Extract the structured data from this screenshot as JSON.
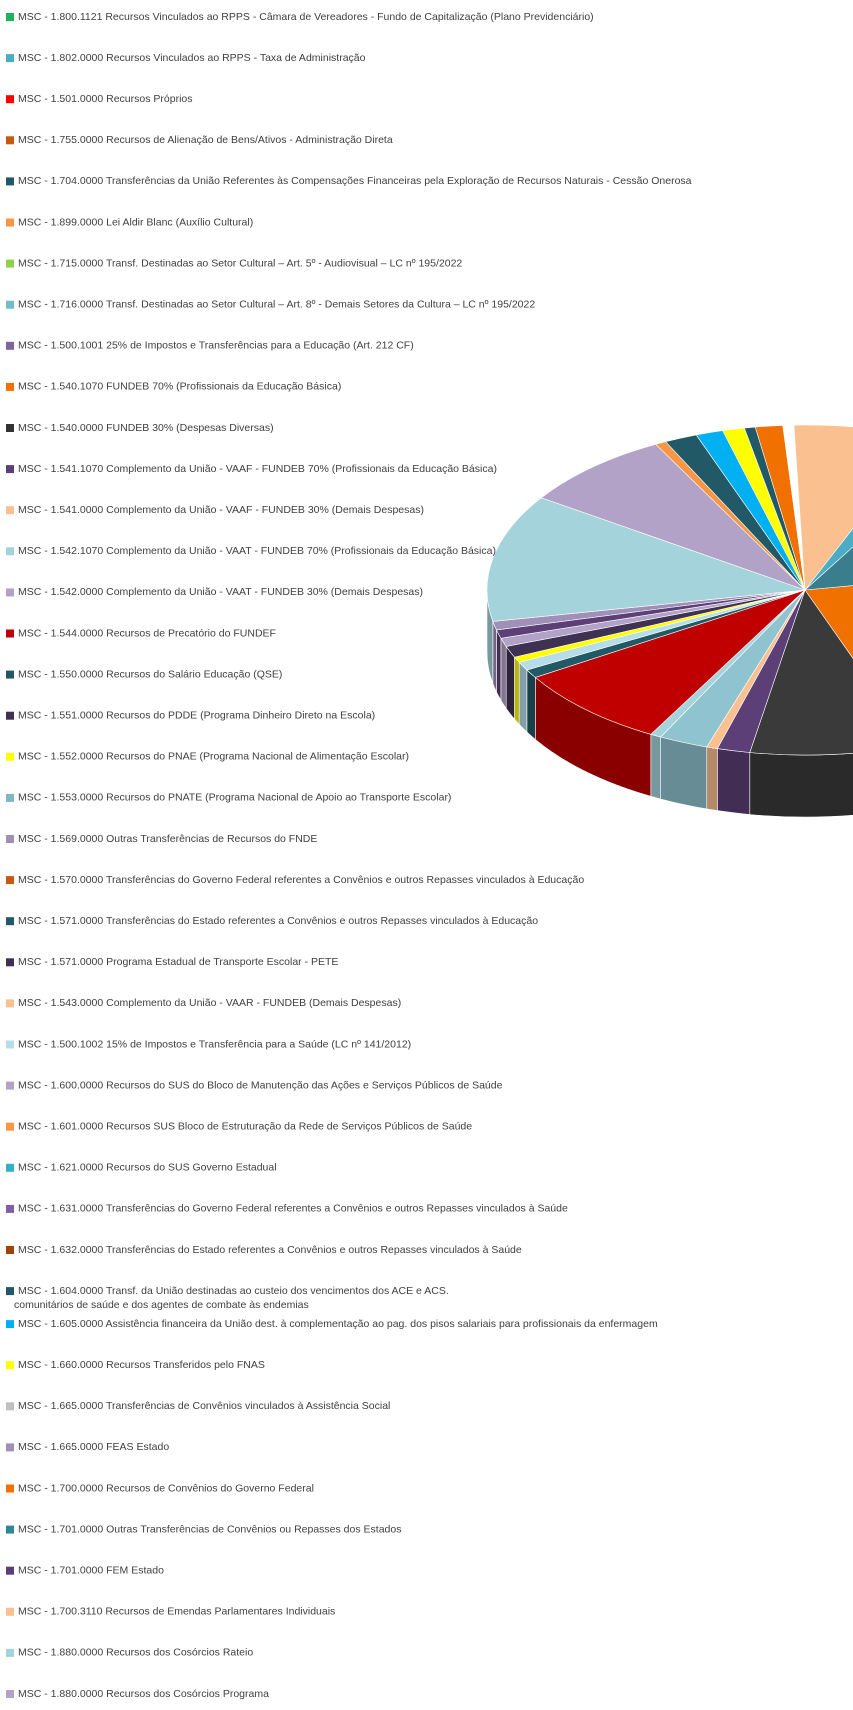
{
  "legend": {
    "items": [
      {
        "label": "MSC - 1.800.1121 Recursos Vinculados ao RPPS - Câmara de Vereadores - Fundo de Capitalização (Plano Previdenciário)",
        "color": "#1fb25a"
      },
      {
        "label": "MSC - 1.802.0000 Recursos Vinculados ao RPPS - Taxa de Administração",
        "color": "#4bacc6"
      },
      {
        "label": "MSC - 1.501.0000 Recursos Próprios",
        "color": "#ff0000"
      },
      {
        "label": "MSC - 1.755.0000 Recursos de Alienação de Bens/Ativos - Administração Direta",
        "color": "#c55a11"
      },
      {
        "label": "MSC - 1.704.0000 Transferências da União Referentes às Compensações Financeiras pela Exploração de Recursos Naturais - Cessão Onerosa",
        "color": "#215967"
      },
      {
        "label": "MSC - 1.899.0000 Lei Aldir Blanc (Auxílio Cultural)",
        "color": "#f79646"
      },
      {
        "label": "MSC - 1.715.0000 Transf. Destinadas ao Setor Cultural – Art. 5º - Audiovisual – LC nº 195/2022",
        "color": "#92d050"
      },
      {
        "label": "MSC - 1.716.0000 Transf. Destinadas ao Setor Cultural – Art. 8º - Demais Setores da Cultura – LC nº 195/2022",
        "color": "#6fbfc8"
      },
      {
        "label": "MSC - 1.500.1001 25% de Impostos e Transferências para a Educação (Art. 212 CF)",
        "color": "#8064a2"
      },
      {
        "label": "MSC - 1.540.1070 FUNDEB 70% (Profissionais da Educação Básica)",
        "color": "#f07000"
      },
      {
        "label": "MSC - 1.540.0000 FUNDEB 30% (Despesas Diversas)",
        "color": "#333333"
      },
      {
        "label": "MSC - 1.541.1070 Complemento da União - VAAF - FUNDEB 70% (Profissionais da Educação Básica)",
        "color": "#5b3f76"
      },
      {
        "label": "MSC - 1.541.0000 Complemento da União - VAAF - FUNDEB 30% (Demais Despesas)",
        "color": "#fac090"
      },
      {
        "label": "MSC - 1.542.1070 Complemento da União - VAAT - FUNDEB 70% (Profissionais da Educação Básica)",
        "color": "#a5d3dc"
      },
      {
        "label": "MSC - 1.542.0000 Complemento da União - VAAT - FUNDEB 30% (Demais Despesas)",
        "color": "#b3a2c7"
      },
      {
        "label": "MSC - 1.544.0000 Recursos de Precatório do FUNDEF",
        "color": "#c00000"
      },
      {
        "label": "MSC - 1.550.0000 Recursos do Salário Educação (QSE)",
        "color": "#215967"
      },
      {
        "label": "MSC - 1.551.0000 Recursos do PDDE (Programa Dinheiro Direto na Escola)",
        "color": "#3f3151"
      },
      {
        "label": "MSC - 1.552.0000 Recursos do PNAE (Programa Nacional de Alimentação Escolar)",
        "color": "#ffff00"
      },
      {
        "label": "MSC - 1.553.0000 Recursos do PNATE (Programa Nacional de Apoio ao Transporte Escolar)",
        "color": "#7fb7c7"
      },
      {
        "label": "MSC - 1.569.0000 Outras Transferências de Recursos do FNDE",
        "color": "#a090b8"
      },
      {
        "label": "MSC - 1.570.0000 Transferências do Governo Federal referentes a Convênios e outros Repasses vinculados à Educação",
        "color": "#c55a11"
      },
      {
        "label": "MSC - 1.571.0000 Transferências do Estado referentes a Convênios e outros Repasses vinculados à Educação",
        "color": "#215967"
      },
      {
        "label": "MSC - 1.571.0000 Programa Estadual de Transporte Escolar - PETE",
        "color": "#3f3151"
      },
      {
        "label": "MSC - 1.543.0000 Complemento da União - VAAR - FUNDEB (Demais Despesas)",
        "color": "#fac090"
      },
      {
        "label": "MSC - 1.500.1002 15% de Impostos e Transferência para a Saúde (LC nº 141/2012)",
        "color": "#b7dde8"
      },
      {
        "label": "MSC - 1.600.0000 Recursos do SUS do Bloco de Manutenção das Ações e Serviços Públicos de Saúde",
        "color": "#b3a2c7"
      },
      {
        "label": "MSC - 1.601.0000 Recursos SUS Bloco de Estruturação da Rede de Serviços Públicos de Saúde",
        "color": "#f79646"
      },
      {
        "label": "MSC - 1.621.0000 Recursos do SUS Governo Estadual",
        "color": "#31b0c8"
      },
      {
        "label": "MSC - 1.631.0000 Transferências do Governo Federal referentes a Convênios e outros Repasses vinculados à Saúde",
        "color": "#7f5fa8"
      },
      {
        "label": "MSC - 1.632.0000 Transferências do Estado referentes a Convênios e outros Repasses vinculados à Saúde",
        "color": "#a0430a"
      },
      {
        "label": "MSC - 1.604.0000 Transf. da União destinadas ao custeio dos vencimentos dos ACE e ACS.",
        "continuation": "comunitários de saúde e dos agentes de combate às endemias",
        "color": "#215967"
      },
      {
        "label": "MSC - 1.605.0000 Assistência financeira da União dest. à complementação ao pag. dos pisos salariais para profissionais da enfermagem",
        "color": "#00b0f0"
      },
      {
        "label": "MSC - 1.660.0000 Recursos Transferidos pelo FNAS",
        "color": "#ffff00"
      },
      {
        "label": "MSC - 1.665.0000 Transferências de Convênios vinculados à Assistência Social",
        "color": "#bfbfbf"
      },
      {
        "label": "MSC - 1.665.0000 FEAS Estado",
        "color": "#a090b8"
      },
      {
        "label": "MSC - 1.700.0000 Recursos de Convênios do Governo Federal",
        "color": "#f07000"
      },
      {
        "label": "MSC - 1.701.0000 Outras Transferências de Convênios ou Repasses dos Estados",
        "color": "#31859c"
      },
      {
        "label": "MSC - 1.701.0000 FEM Estado",
        "color": "#5b3f76"
      },
      {
        "label": "MSC - 1.700.3110 Recursos de Emendas Parlamentares Individuais",
        "color": "#fac090"
      },
      {
        "label": "MSC - 1.880.0000 Recursos dos Cosórcios Rateio",
        "color": "#a5d3dc"
      },
      {
        "label": "MSC - 1.880.0000 Recursos dos Cosórcios Programa",
        "color": "#b3a2c7"
      }
    ]
  }
}
